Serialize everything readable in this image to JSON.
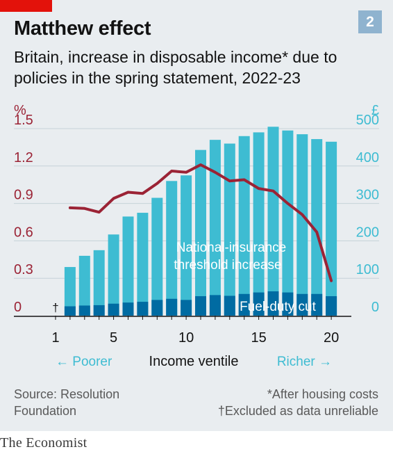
{
  "badge": "2",
  "title": "Matthew effect",
  "subtitle": "Britain, increase in disposable income* due to policies in the spring statement, 2022-23",
  "footer": {
    "source": "Source: Resolution Foundation",
    "note1": "*After housing costs",
    "note2": "†Excluded as data unreliable"
  },
  "brand": "The Economist",
  "colors": {
    "line": "#9b2335",
    "nics_bar": "#3ebcd2",
    "fuel_bar": "#006ba2",
    "left_axis": "#9b2335",
    "right_axis": "#3ebcd2",
    "background": "#e9edf0"
  },
  "chart_data": {
    "type": "bar",
    "x": [
      1,
      2,
      3,
      4,
      5,
      6,
      7,
      8,
      9,
      10,
      11,
      12,
      13,
      14,
      15,
      16,
      17,
      18,
      19,
      20
    ],
    "xlabel": "Income ventile",
    "x_ticks": [
      1,
      5,
      10,
      15,
      20
    ],
    "x_direction_left": "← Poorer",
    "x_direction_right": "Richer →",
    "excluded_marker": {
      "x": 1,
      "label": "†"
    },
    "left_axis": {
      "unit": "%",
      "ticks": [
        "0",
        "0.3",
        "0.6",
        "0.9",
        "1.2",
        "1.5"
      ],
      "ylim": [
        0,
        1.5
      ]
    },
    "right_axis": {
      "unit": "£",
      "ticks": [
        "0",
        "100",
        "200",
        "300",
        "400",
        "500"
      ],
      "ylim": [
        0,
        500
      ]
    },
    "series": [
      {
        "name": "National-insurance threshold increase",
        "axis": "right",
        "type": "stacked-bar",
        "values": [
          null,
          130,
          160,
          175,
          217,
          265,
          275,
          315,
          360,
          375,
          443,
          470,
          460,
          480,
          490,
          505,
          495,
          485,
          472,
          465
        ]
      },
      {
        "name": "Fuel-duty cut",
        "axis": "right",
        "type": "stacked-bar-base",
        "values": [
          null,
          25,
          27,
          28,
          32,
          35,
          37,
          42,
          45,
          42,
          52,
          55,
          53,
          58,
          62,
          65,
          62,
          58,
          58,
          52
        ]
      },
      {
        "name": "",
        "axis": "left",
        "type": "line",
        "values": [
          null,
          0.865,
          0.86,
          0.83,
          0.94,
          0.99,
          0.98,
          1.06,
          1.16,
          1.15,
          1.21,
          1.15,
          1.08,
          1.09,
          1.02,
          1.0,
          0.9,
          0.81,
          0.67,
          0.28
        ]
      }
    ],
    "annotations": [
      {
        "text": "National-insurance threshold increase"
      },
      {
        "text": "Fuel-duty cut"
      }
    ],
    "grid": true
  }
}
